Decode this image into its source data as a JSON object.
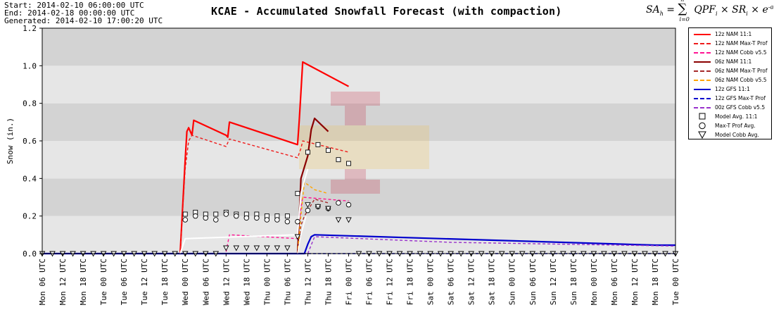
{
  "header": {
    "start": "Start: 2014-02-10 06:00:00 UTC",
    "end": "End: 2014-02-18 00:00:00 UTC",
    "generated": "Generated: 2014-02-10 17:00:20 UTC",
    "title": "KCAE - Accumulated Snowfall Forecast (with compaction)"
  },
  "formula": {
    "lhs": "SA",
    "lhs_sub": "h",
    "sum_top": "h",
    "sum_bottom": "i=0",
    "body": "QPF",
    "body_sub": "i",
    "mid": "SR",
    "mid_sub": "i",
    "exp_base": "e",
    "exponent": "-a(h-i)^½"
  },
  "colors": {
    "plot_band_dark": "#d3d3d3",
    "plot_band_light": "#e6e6e6",
    "nam12": "#ff0000",
    "nam12_maxt": "#ee1c1c",
    "nam12_cobb": "#ff1493",
    "nam06": "#8b0000",
    "nam06_maxt": "#a52a2a",
    "nam06_cobb": "#ffa500",
    "gfs12": "#0000cd",
    "gfs12_maxt": "#0000cd",
    "gfs00_cobb": "#9932cc"
  },
  "legend": [
    {
      "label": "12z NAM 11:1",
      "color": "#ff0000",
      "style": "solid",
      "icon": "line"
    },
    {
      "label": "12z NAM Max-T Prof",
      "color": "#ee1c1c",
      "style": "dashed",
      "icon": "line"
    },
    {
      "label": "12z NAM Cobb v5.5",
      "color": "#ff1493",
      "style": "dashed",
      "icon": "line"
    },
    {
      "label": "06z NAM 11:1",
      "color": "#8b0000",
      "style": "solid",
      "icon": "line"
    },
    {
      "label": "06z NAM Max-T Prof",
      "color": "#a52a2a",
      "style": "dashed",
      "icon": "line"
    },
    {
      "label": "06z NAM Cobb v5.5",
      "color": "#ffa500",
      "style": "dashed",
      "icon": "line"
    },
    {
      "label": "12z GFS 11:1",
      "color": "#0000cd",
      "style": "solid",
      "icon": "line"
    },
    {
      "label": "12z GFS Max-T Prof",
      "color": "#0000cd",
      "style": "dashed",
      "icon": "line"
    },
    {
      "label": "00z GFS Cobb v5.5",
      "color": "#9932cc",
      "style": "dashed",
      "icon": "line"
    },
    {
      "label": "Model Avg. 11:1",
      "color": "#000000",
      "style": "marker",
      "icon": "square"
    },
    {
      "label": "Max-T Prof Avg.",
      "color": "#000000",
      "style": "marker",
      "icon": "circle"
    },
    {
      "label": "Model Cobb Avg.",
      "color": "#000000",
      "style": "marker",
      "icon": "triangle"
    }
  ],
  "chart_data": {
    "type": "line",
    "title": "KCAE - Accumulated Snowfall Forecast (with compaction)",
    "ylabel": "Snow (in.)",
    "xlabel": "",
    "ylim": [
      0,
      1.2
    ],
    "xlim": [
      0,
      186
    ],
    "x_unit": "hours since Start",
    "yticks": [
      0.0,
      0.2,
      0.4,
      0.6,
      0.8,
      1.0,
      1.2
    ],
    "ytick_labels": [
      "0.0",
      "0.2",
      "0.4",
      "0.6",
      "0.8",
      "1.0",
      "1.2"
    ],
    "xticks": [
      0,
      6,
      12,
      18,
      24,
      30,
      36,
      42,
      48,
      54,
      60,
      66,
      72,
      78,
      84,
      90,
      96,
      102,
      108,
      114,
      120,
      126,
      132,
      138,
      144,
      150,
      156,
      162,
      168,
      174,
      180,
      186
    ],
    "xtick_labels": [
      "Mon 06 UTC",
      "Mon 12 UTC",
      "Mon 18 UTC",
      "Tue 00 UTC",
      "Tue 06 UTC",
      "Tue 12 UTC",
      "Tue 18 UTC",
      "Wed 00 UTC",
      "Wed 06 UTC",
      "Wed 12 UTC",
      "Wed 18 UTC",
      "Thu 00 UTC",
      "Thu 06 UTC",
      "Thu 12 UTC",
      "Thu 18 UTC",
      "Fri 00 UTC",
      "Fri 06 UTC",
      "Fri 12 UTC",
      "Fri 18 UTC",
      "Sat 00 UTC",
      "Sat 06 UTC",
      "Sat 12 UTC",
      "Sat 18 UTC",
      "Sun 00 UTC",
      "Sun 06 UTC",
      "Sun 12 UTC",
      "Sun 18 UTC",
      "Mon 00 UTC",
      "Mon 06 UTC",
      "Mon 12 UTC",
      "Mon 18 UTC",
      "Tue 00 UTC"
    ],
    "grid": "horizontal bands",
    "legend_position": "right",
    "series": [
      {
        "name": "12z NAM 11:1",
        "color": "#ff0000",
        "dash": "",
        "width": 2.2,
        "x": [
          40.5,
          42,
          42.5,
          43,
          44,
          44.5,
          54,
          54.5,
          55,
          75,
          75.5,
          76,
          76.5,
          90
        ],
        "y": [
          0,
          0.5,
          0.65,
          0.67,
          0.63,
          0.71,
          0.63,
          0.62,
          0.7,
          0.58,
          0.71,
          0.86,
          1.02,
          0.89
        ]
      },
      {
        "name": "12z NAM Max-T Prof",
        "color": "#ee1c1c",
        "dash": "4,3",
        "width": 1.4,
        "x": [
          40.5,
          42,
          43,
          44,
          54,
          55,
          75,
          76,
          76.5,
          90
        ],
        "y": [
          0,
          0.45,
          0.6,
          0.63,
          0.57,
          0.61,
          0.51,
          0.56,
          0.6,
          0.54
        ]
      },
      {
        "name": "12z NAM Cobb v5.5",
        "color": "#ff1493",
        "dash": "4,3",
        "width": 1.4,
        "x": [
          54,
          55,
          75,
          76,
          76.5,
          90
        ],
        "y": [
          0.01,
          0.1,
          0.08,
          0.24,
          0.3,
          0.28
        ]
      },
      {
        "name": "06z NAM 11:1",
        "color": "#8b0000",
        "dash": "",
        "width": 2.2,
        "x": [
          75,
          76,
          78,
          79,
          80,
          84
        ],
        "y": [
          0,
          0.4,
          0.52,
          0.66,
          0.72,
          0.65
        ]
      },
      {
        "name": "06z NAM Max-T Prof",
        "color": "#a52a2a",
        "dash": "4,3",
        "width": 1.4,
        "x": [
          75,
          76,
          77,
          80,
          84
        ],
        "y": [
          0,
          0.15,
          0.2,
          0.29,
          0.27
        ]
      },
      {
        "name": "06z NAM Cobb v5.5",
        "color": "#ffa500",
        "dash": "4,3",
        "width": 1.4,
        "x": [
          75,
          76,
          77,
          80,
          84
        ],
        "y": [
          0,
          0.2,
          0.38,
          0.34,
          0.32
        ]
      },
      {
        "name": "12z GFS 11:1",
        "color": "#0000cd",
        "dash": "",
        "width": 2.2,
        "x": [
          0,
          77,
          78,
          79,
          80,
          180,
          186
        ],
        "y": [
          0,
          0,
          0.05,
          0.09,
          0.1,
          0.045,
          0.045
        ]
      },
      {
        "name": "12z GFS Max-T Prof",
        "color": "#0000cd",
        "dash": "4,3",
        "width": 1.4,
        "x": [
          0,
          186
        ],
        "y": [
          0.0,
          0.0
        ]
      },
      {
        "name": "00z GFS Cobb v5.5",
        "color": "#9932cc",
        "dash": "4,3",
        "width": 1.4,
        "x": [
          78,
          80,
          120,
          186
        ],
        "y": [
          0,
          0.09,
          0.06,
          0.04
        ]
      },
      {
        "name": "Model Avg. 11:1 (trace)",
        "color": "#ffffff",
        "dash": "",
        "width": 2.0,
        "x": [
          40.5,
          42,
          75,
          76,
          77,
          78
        ],
        "y": [
          0,
          0.08,
          0.1,
          0.32,
          0.39,
          0.45
        ]
      },
      {
        "name": "Model Cobb Avg. (trace)",
        "color": "#ffffff",
        "dash": "",
        "width": 1.5,
        "x": [
          75,
          76,
          77.5
        ],
        "y": [
          0,
          0.1,
          0.2
        ]
      }
    ],
    "markers": [
      {
        "name": "Model Avg. 11:1",
        "shape": "square",
        "x": [
          42,
          45,
          48,
          51,
          54,
          57,
          60,
          63,
          66,
          69,
          72,
          75,
          78,
          81,
          84,
          87,
          90
        ],
        "y": [
          0.21,
          0.22,
          0.21,
          0.21,
          0.22,
          0.21,
          0.21,
          0.21,
          0.2,
          0.2,
          0.2,
          0.32,
          0.54,
          0.58,
          0.55,
          0.5,
          0.48
        ]
      },
      {
        "name": "Max-T Prof Avg.",
        "shape": "circle",
        "x": [
          42,
          45,
          48,
          51,
          54,
          57,
          60,
          63,
          66,
          69,
          72,
          75,
          78,
          81,
          84,
          87,
          90
        ],
        "y": [
          0.18,
          0.2,
          0.19,
          0.18,
          0.21,
          0.2,
          0.19,
          0.19,
          0.18,
          0.18,
          0.17,
          0.17,
          0.23,
          0.25,
          0.24,
          0.27,
          0.26
        ]
      },
      {
        "name": "Model Cobb Avg.",
        "shape": "triangle",
        "x": [
          0,
          3,
          6,
          9,
          12,
          15,
          18,
          21,
          24,
          27,
          30,
          33,
          36,
          39,
          42,
          45,
          48,
          51,
          54,
          57,
          60,
          63,
          66,
          69,
          72,
          75,
          78,
          81,
          84,
          87,
          90,
          93,
          96,
          99,
          102,
          105,
          108,
          111,
          114,
          117,
          120,
          123,
          126,
          129,
          132,
          135,
          138,
          141,
          144,
          147,
          150,
          153,
          156,
          159,
          162,
          165,
          168,
          171,
          174,
          177,
          180,
          183,
          186
        ],
        "y": [
          0,
          0,
          0,
          0,
          0,
          0,
          0,
          0,
          0,
          0,
          0,
          0,
          0,
          0,
          0,
          0,
          0,
          0,
          0.03,
          0.03,
          0.03,
          0.03,
          0.03,
          0.03,
          0.03,
          0.09,
          0.26,
          0.25,
          0.24,
          0.18,
          0.18,
          0,
          0,
          0,
          0,
          0,
          0,
          0,
          0,
          0,
          0,
          0,
          0,
          0,
          0,
          0,
          0,
          0,
          0,
          0,
          0,
          0,
          0,
          0,
          0,
          0,
          0,
          0,
          0,
          0,
          0,
          0,
          0
        ]
      }
    ]
  }
}
